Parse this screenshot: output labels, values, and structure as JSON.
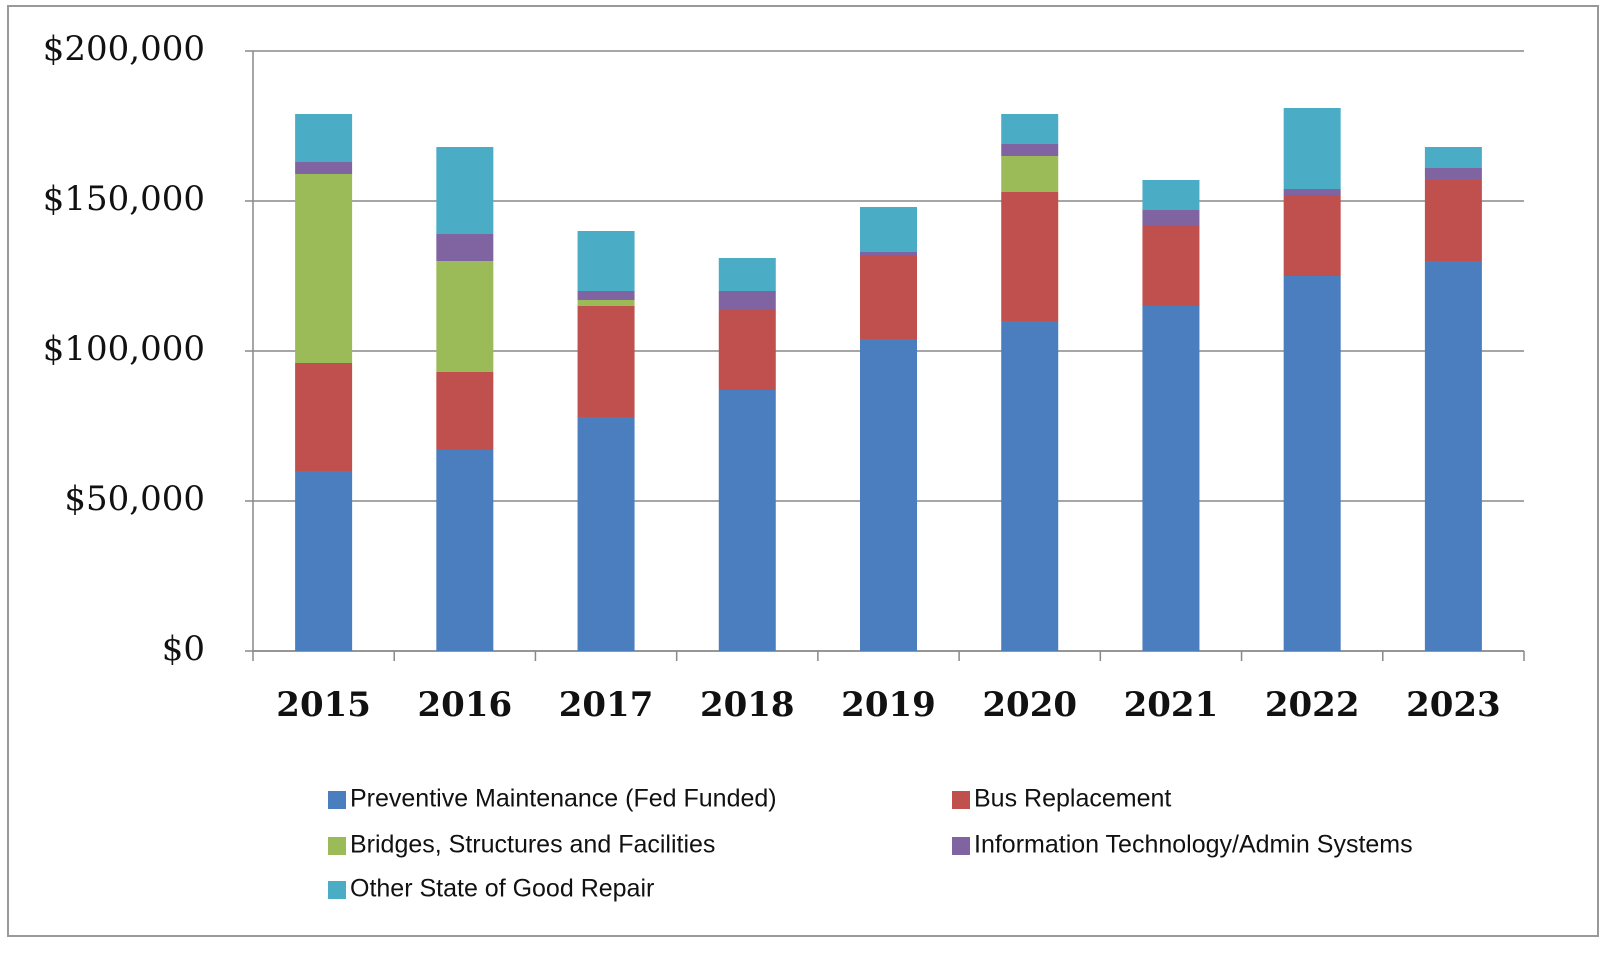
{
  "chart_data": {
    "type": "stacked_bar",
    "categories": [
      "2015",
      "2016",
      "2017",
      "2018",
      "2019",
      "2020",
      "2021",
      "2022",
      "2023"
    ],
    "series": [
      {
        "name": "Preventive Maintenance (Fed Funded)",
        "color": "#4a7ebf",
        "values": [
          60000,
          67000,
          78000,
          87000,
          104000,
          110000,
          115000,
          125000,
          130000
        ]
      },
      {
        "name": "Bus Replacement",
        "color": "#c0504d",
        "values": [
          36000,
          26000,
          37000,
          27000,
          28000,
          43000,
          27000,
          27000,
          27000
        ]
      },
      {
        "name": "Bridges, Structures and Facilities",
        "color": "#9bbb59",
        "values": [
          63000,
          37000,
          2000,
          0,
          0,
          12000,
          0,
          0,
          0
        ]
      },
      {
        "name": "Information Technology/Admin Systems",
        "color": "#8064a2",
        "values": [
          4000,
          9000,
          3000,
          6000,
          1000,
          4000,
          5000,
          2000,
          4000
        ]
      },
      {
        "name": "Other State of Good Repair",
        "color": "#4bacc6",
        "values": [
          16000,
          29000,
          20000,
          11000,
          15000,
          10000,
          10000,
          27000,
          7000
        ]
      }
    ],
    "ylim": [
      0,
      200000
    ],
    "yticks": [
      {
        "value": 0,
        "label": "$0"
      },
      {
        "value": 50000,
        "label": "$50,000"
      },
      {
        "value": 100000,
        "label": "$100,000"
      },
      {
        "value": 150000,
        "label": "$150,000"
      },
      {
        "value": 200000,
        "label": "$200,000"
      }
    ],
    "grid": true,
    "legend": "bottom"
  }
}
